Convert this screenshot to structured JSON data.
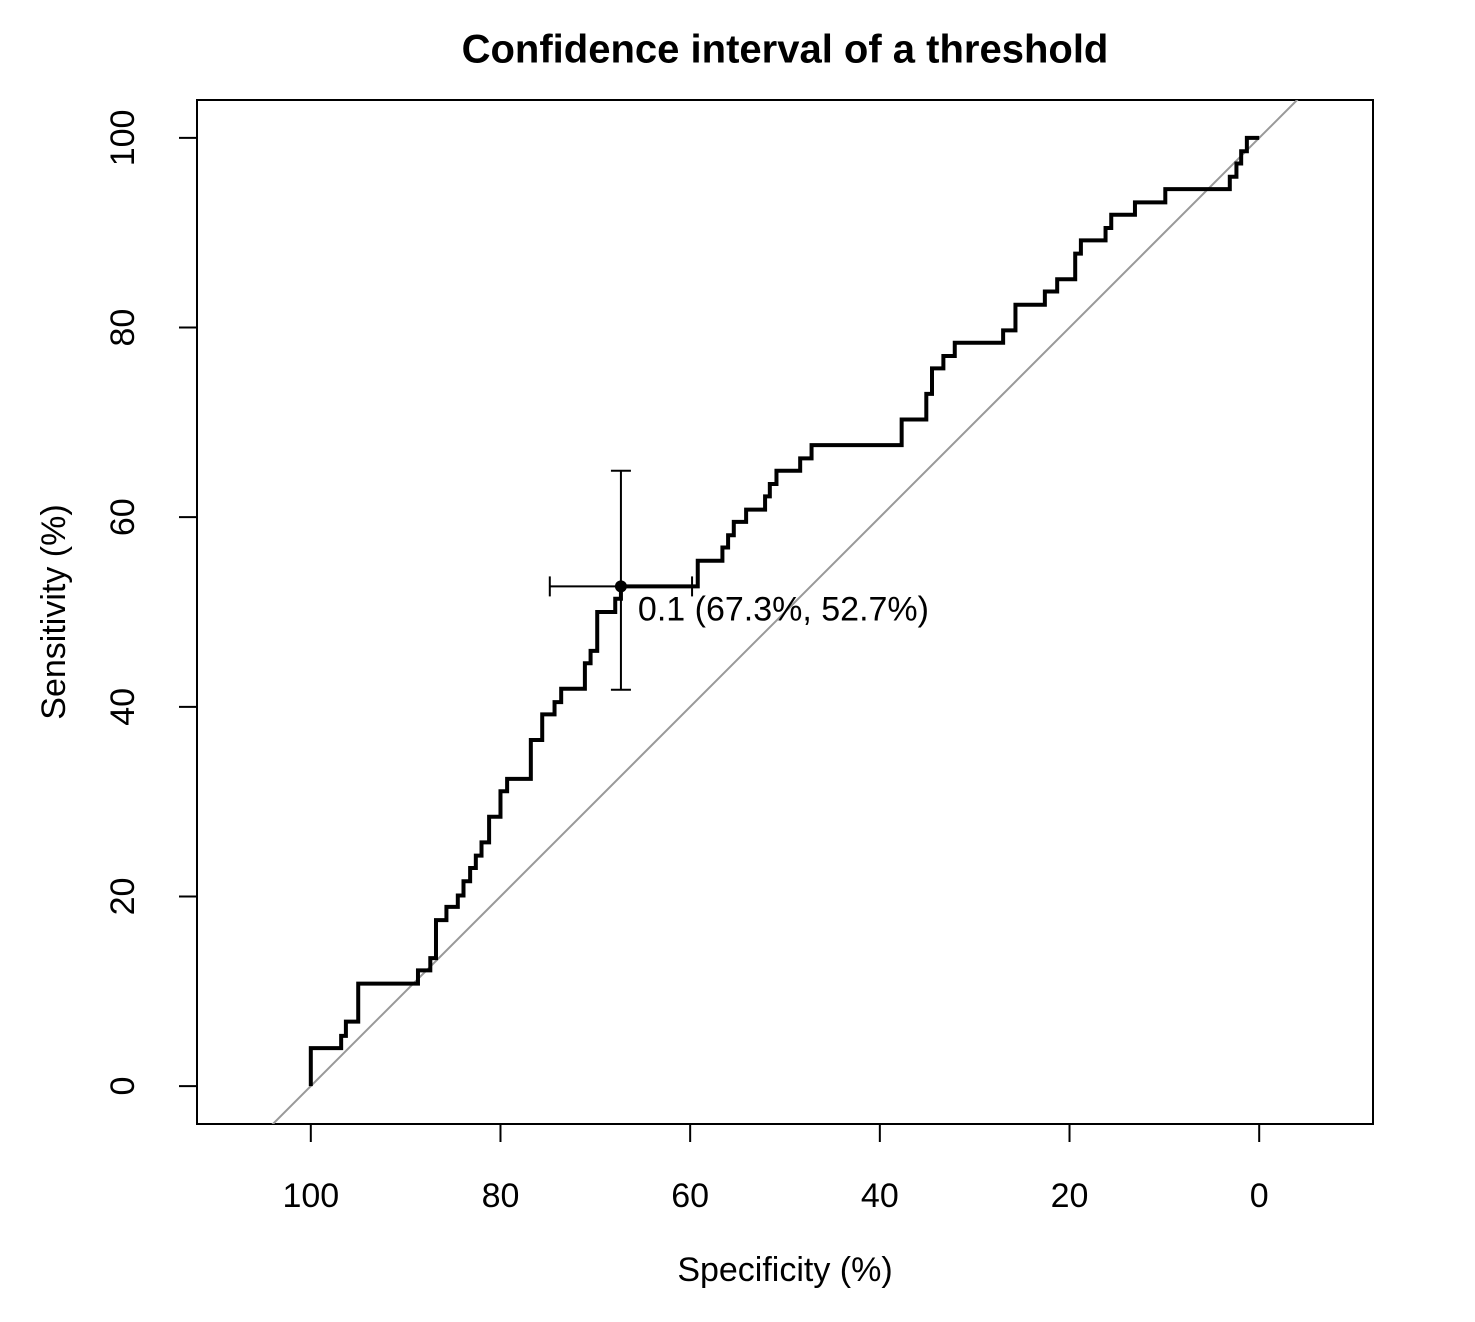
{
  "chart_data": {
    "type": "roc",
    "title": "Confidence interval of a threshold",
    "x_label": "Specificity (%)",
    "y_label": "Sensitivity (%)",
    "xlim": [
      112,
      -12
    ],
    "ylim": [
      -4,
      104
    ],
    "xticks": [
      100,
      80,
      60,
      40,
      20,
      0
    ],
    "yticks": [
      0,
      20,
      40,
      60,
      80,
      100
    ],
    "color": "#000000",
    "diagonal_color": "#999999",
    "x": [
      100,
      100,
      96.8,
      96.8,
      96.3,
      96.3,
      95,
      95,
      88.7,
      88.7,
      87.4,
      87.4,
      86.8,
      86.8,
      85.7,
      85.7,
      84.5,
      84.5,
      83.9,
      83.9,
      83.2,
      83.2,
      82.6,
      82.6,
      82,
      82,
      81.2,
      81.2,
      80,
      80,
      79.3,
      79.3,
      76.8,
      76.8,
      75.6,
      75.6,
      74.3,
      74.3,
      73.6,
      73.6,
      71.1,
      71.1,
      70.5,
      70.5,
      69.8,
      69.8,
      67.9,
      67.9,
      67.3,
      67.3,
      59.2,
      59.2,
      56.6,
      56.6,
      56,
      56,
      55.4,
      55.4,
      54.1,
      54.1,
      52.1,
      52.1,
      51.6,
      51.6,
      50.9,
      50.9,
      48.4,
      48.4,
      47.2,
      47.2,
      37.7,
      37.7,
      35.1,
      35.1,
      34.5,
      34.5,
      33.3,
      33.3,
      32.1,
      32.1,
      27,
      27,
      25.7,
      25.7,
      22.6,
      22.6,
      21.3,
      21.3,
      19.4,
      19.4,
      18.8,
      18.8,
      16.2,
      16.2,
      15.6,
      15.6,
      13.1,
      13.1,
      9.9,
      9.9,
      3.1,
      3.1,
      2.4,
      2.4,
      1.9,
      1.9,
      1.3,
      1.3,
      0
    ],
    "values": [
      0,
      4,
      4,
      5.3,
      5.3,
      6.8,
      6.8,
      10.8,
      10.8,
      12.2,
      12.2,
      13.5,
      13.5,
      17.5,
      17.5,
      18.9,
      18.9,
      20.1,
      20.1,
      21.6,
      21.6,
      23,
      23,
      24.3,
      24.3,
      25.7,
      25.7,
      28.4,
      28.4,
      31.1,
      31.1,
      32.4,
      32.4,
      36.5,
      36.5,
      39.2,
      39.2,
      40.5,
      40.5,
      41.9,
      41.9,
      44.6,
      44.6,
      45.9,
      45.9,
      50,
      50,
      51.4,
      51.4,
      52.7,
      52.7,
      55.4,
      55.4,
      56.8,
      56.8,
      58.1,
      58.1,
      59.5,
      59.5,
      60.8,
      60.8,
      62.2,
      62.2,
      63.5,
      63.5,
      64.9,
      64.9,
      66.2,
      66.2,
      67.6,
      67.6,
      70.3,
      70.3,
      73,
      73,
      75.7,
      75.7,
      77,
      77,
      78.4,
      78.4,
      79.7,
      79.7,
      82.4,
      82.4,
      83.8,
      83.8,
      85.1,
      85.1,
      87.8,
      87.8,
      89.2,
      89.2,
      90.5,
      90.5,
      91.9,
      91.9,
      93.2,
      93.2,
      94.6,
      94.6,
      95.9,
      95.9,
      97.3,
      97.3,
      98.6,
      98.6,
      100,
      100
    ],
    "threshold": {
      "x": 67.3,
      "y": 52.7,
      "label": "0.1 (67.3%, 52.7%)",
      "x_ci": [
        74.8,
        59.8
      ],
      "y_ci": [
        41.8,
        64.9
      ]
    }
  }
}
